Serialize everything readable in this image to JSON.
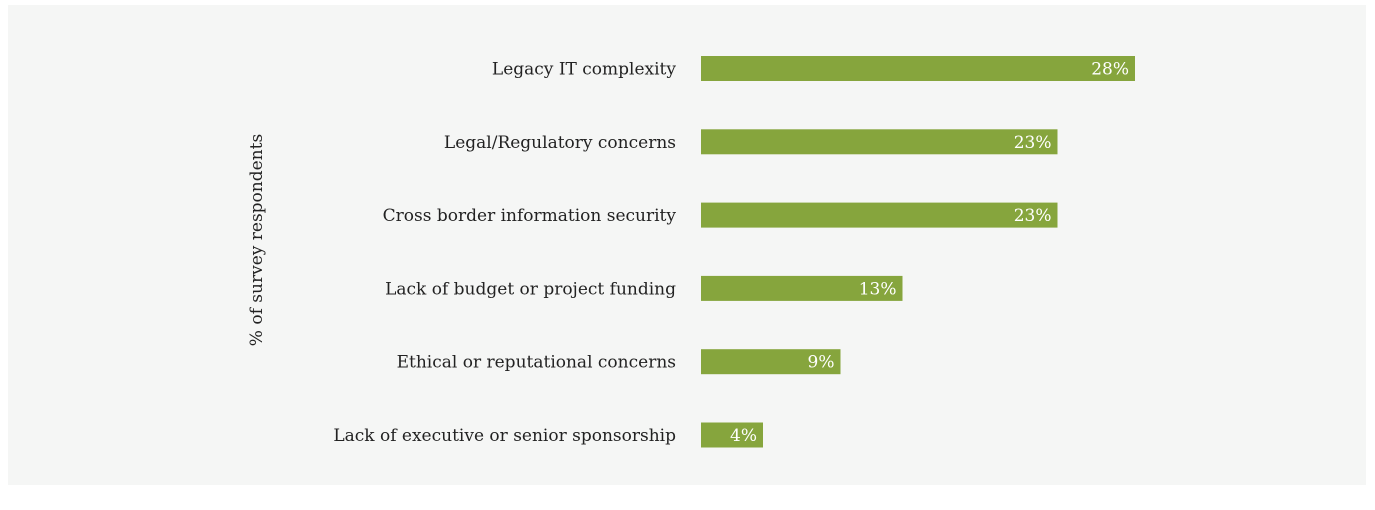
{
  "chart_data": {
    "type": "bar",
    "orientation": "horizontal",
    "ylabel": "% of survey respondents",
    "categories": [
      "Legacy IT complexity",
      "Legal/Regulatory concerns",
      "Cross border information security",
      "Lack of budget or project funding",
      "Ethical or reputational concerns",
      "Lack of executive or senior sponsorship"
    ],
    "values": [
      28,
      23,
      23,
      13,
      9,
      4
    ],
    "value_labels": [
      "28%",
      "23%",
      "23%",
      "13%",
      "9%",
      "4%"
    ],
    "bar_color": "#86a53d",
    "background_color": "#f5f6f5",
    "grid": false,
    "legend": "none"
  }
}
